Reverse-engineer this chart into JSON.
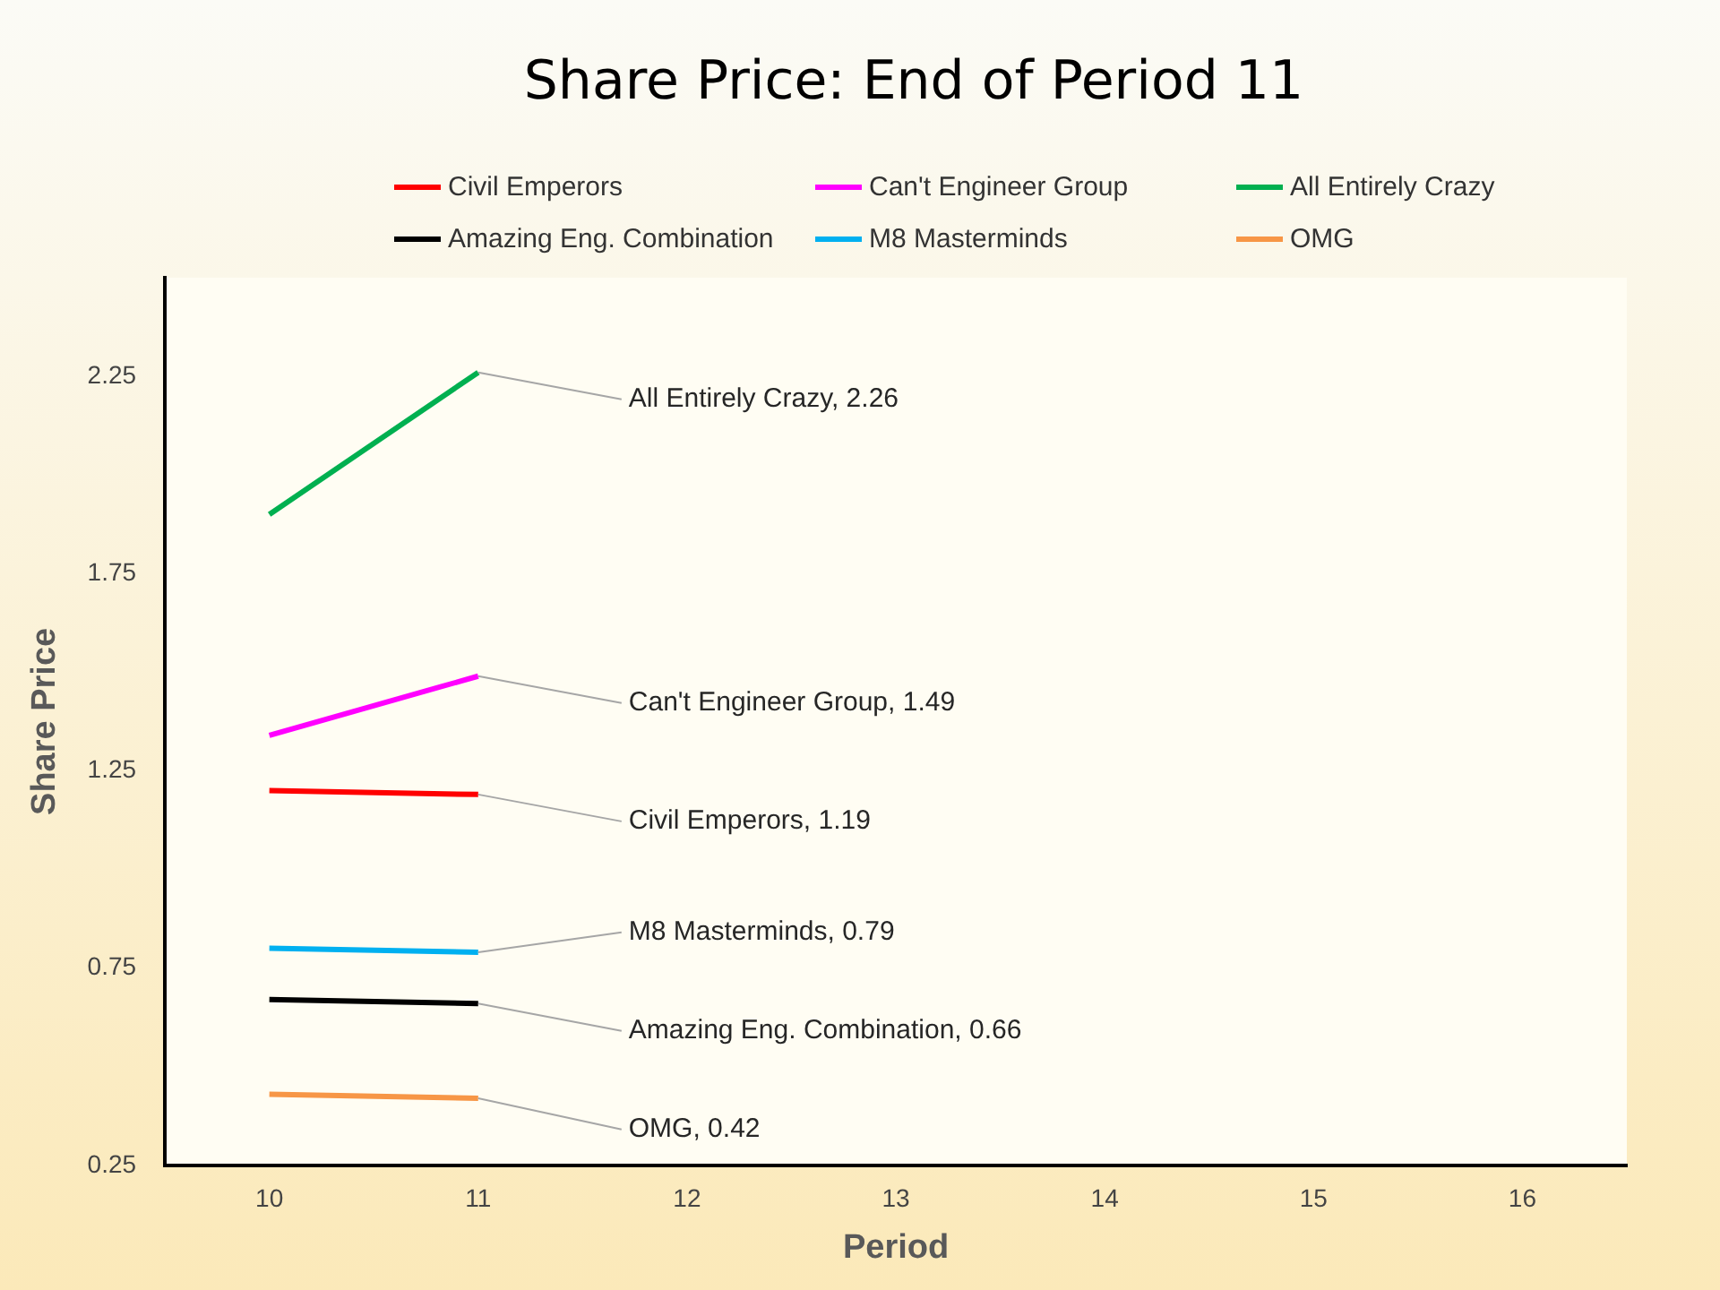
{
  "chart_data": {
    "type": "line",
    "title": "Share Price: End of Period 11",
    "xlabel": "Period",
    "ylabel": "Share Price",
    "categories": [
      "10",
      "11",
      "12",
      "13",
      "14",
      "15",
      "16"
    ],
    "series": [
      {
        "name": "Civil Emperors",
        "color": "#ff0000",
        "values": [
          1.2,
          1.19,
          null,
          null,
          null,
          null,
          null
        ]
      },
      {
        "name": "Can't Engineer Group",
        "color": "#ff00ff",
        "values": [
          1.34,
          1.49,
          null,
          null,
          null,
          null,
          null
        ]
      },
      {
        "name": "All Entirely Crazy",
        "color": "#00b050",
        "values": [
          1.9,
          2.26,
          null,
          null,
          null,
          null,
          null
        ]
      },
      {
        "name": "Amazing Eng. Combination",
        "color": "#000000",
        "values": [
          0.67,
          0.66,
          null,
          null,
          null,
          null,
          null
        ]
      },
      {
        "name": "M8 Masterminds",
        "color": "#00b0f0",
        "values": [
          0.8,
          0.79,
          null,
          null,
          null,
          null,
          null
        ]
      },
      {
        "name": "OMG",
        "color": "#f79646",
        "values": [
          0.43,
          0.42,
          null,
          null,
          null,
          null,
          null
        ]
      }
    ],
    "ylim": [
      0.25,
      2.5
    ],
    "yticks": [
      0.25,
      0.75,
      1.25,
      1.75,
      2.25
    ],
    "grid": false,
    "legend": "top",
    "marker": "none",
    "line_style": "solid",
    "annotations": [
      {
        "text": "All Entirely Crazy, 2.26",
        "x": "11",
        "y": 2.26
      },
      {
        "text": "Can't Engineer Group, 1.49",
        "x": "11",
        "y": 1.49
      },
      {
        "text": "Civil Emperors, 1.19",
        "x": "11",
        "y": 1.19
      },
      {
        "text": "M8 Masterminds, 0.79",
        "x": "11",
        "y": 0.79
      },
      {
        "text": "Amazing Eng. Combination, 0.66",
        "x": "11",
        "y": 0.66
      },
      {
        "text": "OMG, 0.42",
        "x": "11",
        "y": 0.42
      }
    ]
  }
}
